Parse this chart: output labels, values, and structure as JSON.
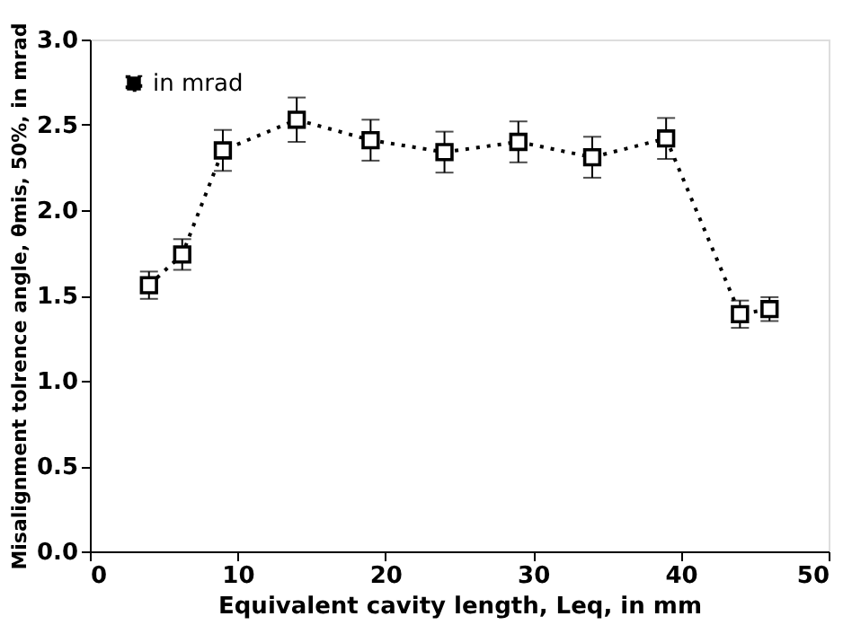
{
  "chart_data": {
    "type": "line",
    "xlabel": "Equivalent cavity length, Leq, in mm",
    "ylabel": "Misalignment tolrence angle, θmis, 50%, in mrad",
    "x": [
      4,
      6.25,
      9,
      14,
      19,
      24,
      29,
      34,
      39,
      44,
      46
    ],
    "series": [
      {
        "name": "in mrad",
        "color": "#000000",
        "values": [
          1.56,
          1.74,
          2.35,
          2.53,
          2.41,
          2.34,
          2.4,
          2.31,
          2.42,
          1.39,
          1.42
        ],
        "errors": [
          0.08,
          0.09,
          0.12,
          0.13,
          0.12,
          0.12,
          0.12,
          0.12,
          0.12,
          0.08,
          0.07
        ]
      }
    ],
    "xlim": [
      0,
      50
    ],
    "xticks": [
      0,
      10,
      20,
      30,
      40,
      50
    ],
    "ylim": [
      0,
      3
    ],
    "yticks": [
      {
        "value": 0,
        "label": "0.0"
      },
      0.5,
      {
        "value": 1,
        "label": "1.0"
      },
      1.5,
      {
        "value": 2,
        "label": "2.0"
      },
      2.5,
      {
        "value": 3,
        "label": "3.0"
      }
    ],
    "grid": false,
    "legend": "top left",
    "marker": "square",
    "line_style": "dotted"
  }
}
